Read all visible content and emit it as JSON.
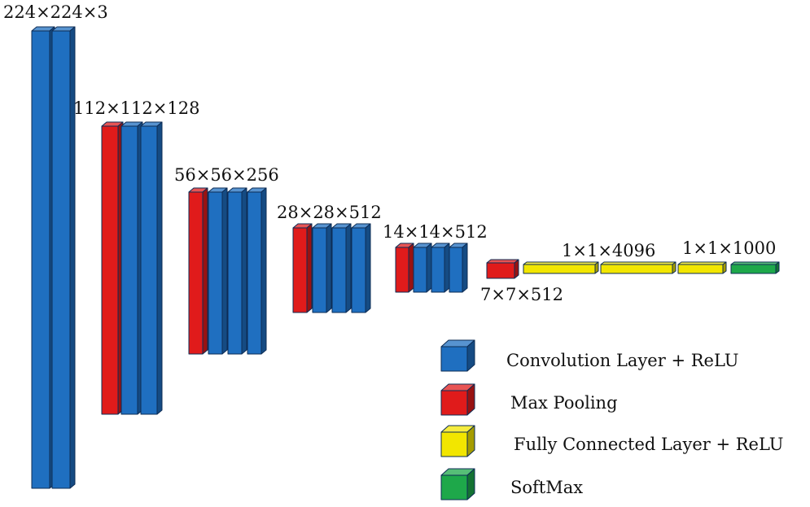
{
  "diagram": {
    "colors": {
      "conv": "#1f6fc0",
      "pool": "#e01b1b",
      "fc": "#f2e600",
      "softmax": "#1ea84a",
      "edge": "#0d2c55"
    },
    "stage_labels": [
      "224×224×3",
      "112×112×128",
      "56×56×256",
      "28×28×512",
      "14×14×512",
      "7×7×512",
      "1×1×4096",
      "1×1×1000"
    ],
    "stages": [
      [
        "conv",
        "conv"
      ],
      [
        "pool",
        "conv",
        "conv"
      ],
      [
        "pool",
        "conv",
        "conv",
        "conv"
      ],
      [
        "pool",
        "conv",
        "conv",
        "conv"
      ],
      [
        "pool",
        "conv",
        "conv",
        "conv"
      ],
      [
        "pool"
      ],
      [
        "fc",
        "fc",
        "fc"
      ],
      [
        "softmax"
      ]
    ]
  },
  "legend": [
    {
      "type": "conv",
      "icon": "blue-cube-icon",
      "label": "Convolution Layer + ReLU"
    },
    {
      "type": "pool",
      "icon": "red-cube-icon",
      "label": "Max Pooling"
    },
    {
      "type": "fc",
      "icon": "yellow-cube-icon",
      "label": "Fully Connected Layer + ReLU"
    },
    {
      "type": "softmax",
      "icon": "green-cube-icon",
      "label": "SoftMax"
    }
  ]
}
